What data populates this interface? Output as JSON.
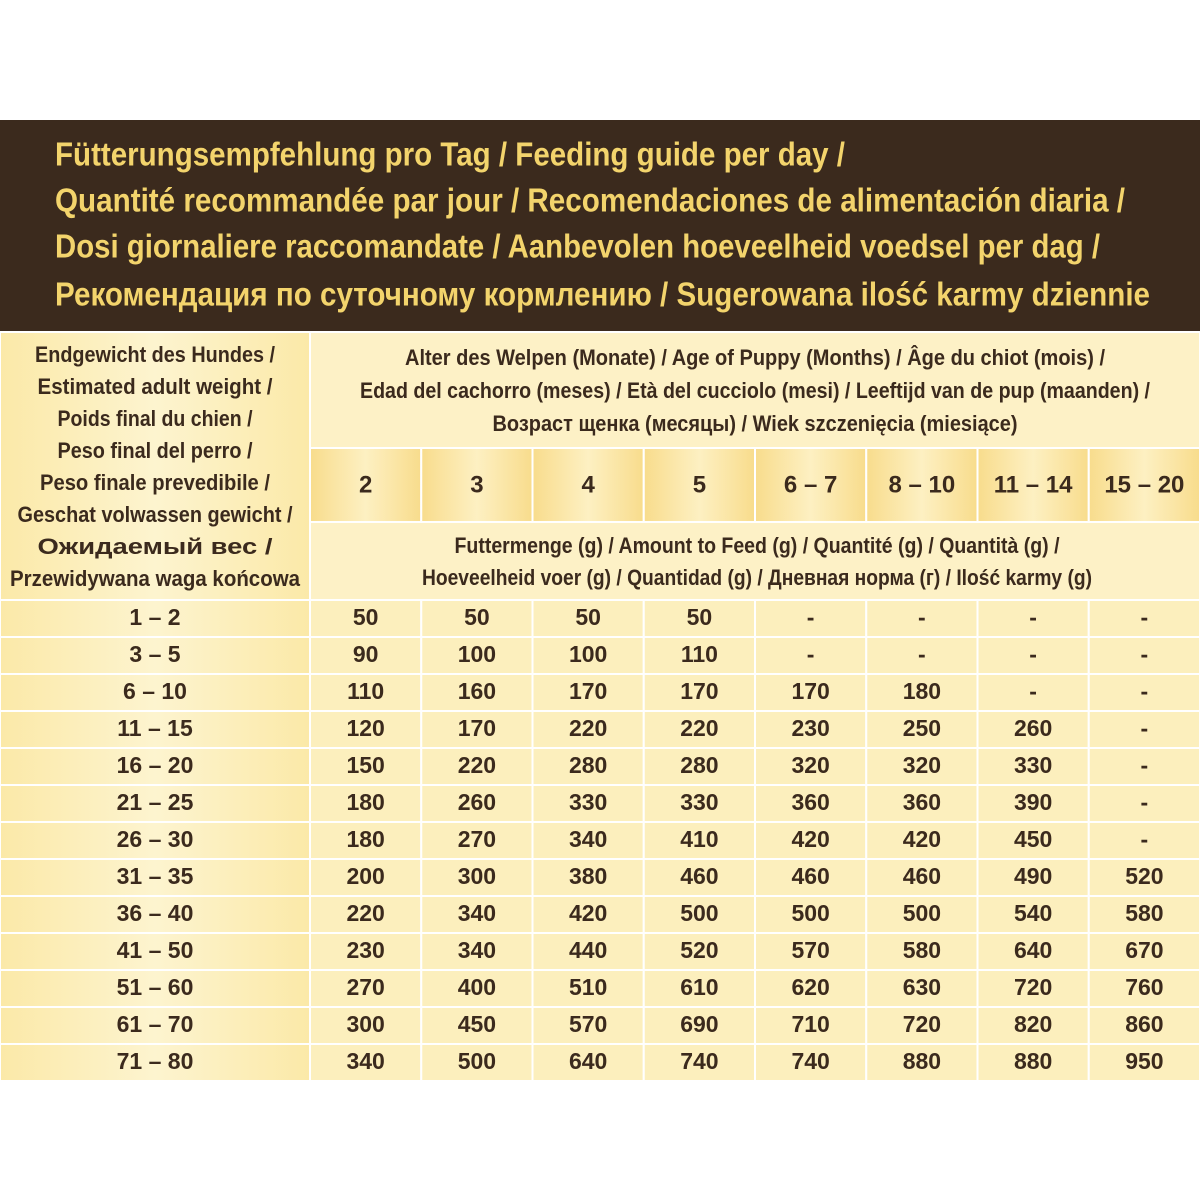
{
  "title_lines": [
    "Fütterungsempfehlung pro Tag / Feeding guide per day /",
    "Quantité recommandée par jour / Recomendaciones de alimentación diaria /",
    "Dosi giornaliere raccomandate / Aanbevolen hoeveelheid voedsel per dag /",
    "Рекомендация по суточному кормлению / Sugerowana ilość karmy dziennie"
  ],
  "table": {
    "weight_header": [
      "Endgewicht des Hundes /",
      "Estimated adult weight /",
      "Poids final du chien /",
      "Peso final del perro /",
      "Peso finale prevedibile /",
      "Geschat volwassen gewicht /",
      "Ожидаемый вес /",
      "Przewidywana waga końcowa"
    ],
    "age_header": [
      "Alter des Welpen (Monate) / Age of Puppy (Months) / Âge du chiot (mois) /",
      "Edad del cachorro (meses) / Età del cucciolo (mesi) / Leeftijd van de pup (maanden) /",
      "Возраст щенка (месяцы) / Wiek szczenięcia (miesiące)"
    ],
    "ages": [
      "2",
      "3",
      "4",
      "5",
      "6 – 7",
      "8 – 10",
      "11 – 14",
      "15 – 20"
    ],
    "amount_header": [
      "Futtermenge (g) / Amount to Feed (g) / Quantité (g) / Quantità (g) /",
      "Hoeveelheid voer (g) / Quantidad (g) / Дневная норма (г) / Ilość karmy (g)"
    ],
    "rows": [
      {
        "weight": "1 – 2",
        "values": [
          50,
          50,
          50,
          50,
          "-",
          "-",
          "-",
          "-"
        ]
      },
      {
        "weight": "3 – 5",
        "values": [
          90,
          100,
          100,
          110,
          "-",
          "-",
          "-",
          "-"
        ]
      },
      {
        "weight": "6 – 10",
        "values": [
          110,
          160,
          170,
          170,
          170,
          180,
          "-",
          "-"
        ]
      },
      {
        "weight": "11 – 15",
        "values": [
          120,
          170,
          220,
          220,
          230,
          250,
          260,
          "-"
        ]
      },
      {
        "weight": "16 – 20",
        "values": [
          150,
          220,
          280,
          280,
          320,
          320,
          330,
          "-"
        ]
      },
      {
        "weight": "21 – 25",
        "values": [
          180,
          260,
          330,
          330,
          360,
          360,
          390,
          "-"
        ]
      },
      {
        "weight": "26 – 30",
        "values": [
          180,
          270,
          340,
          410,
          420,
          420,
          450,
          "-"
        ]
      },
      {
        "weight": "31 – 35",
        "values": [
          200,
          300,
          380,
          460,
          460,
          460,
          490,
          520
        ]
      },
      {
        "weight": "36 – 40",
        "values": [
          220,
          340,
          420,
          500,
          500,
          500,
          540,
          580
        ]
      },
      {
        "weight": "41 – 50",
        "values": [
          230,
          340,
          440,
          520,
          570,
          580,
          640,
          670
        ]
      },
      {
        "weight": "51 – 60",
        "values": [
          270,
          400,
          510,
          610,
          620,
          630,
          720,
          760
        ]
      },
      {
        "weight": "61 – 70",
        "values": [
          300,
          450,
          570,
          690,
          710,
          720,
          820,
          860
        ]
      },
      {
        "weight": "71 – 80",
        "values": [
          340,
          500,
          640,
          740,
          740,
          880,
          880,
          950
        ]
      }
    ]
  }
}
